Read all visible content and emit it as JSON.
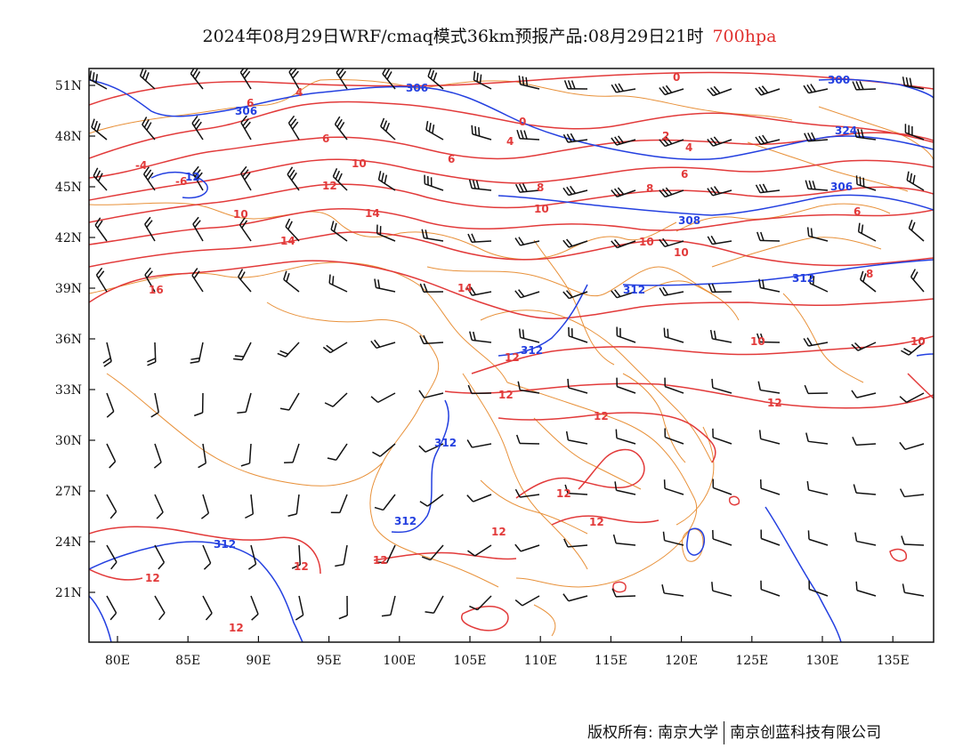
{
  "title": {
    "main": "2024年08月29日WRF/cmaq模式36km预报产品:08月29日21时",
    "level": "700hpa"
  },
  "axes": {
    "lon_labels": [
      "80E",
      "85E",
      "90E",
      "95E",
      "100E",
      "105E",
      "110E",
      "115E",
      "120E",
      "125E",
      "130E",
      "135E"
    ],
    "lat_labels": [
      "51N",
      "48N",
      "45N",
      "42N",
      "39N",
      "36N",
      "33N",
      "30N",
      "27N",
      "24N",
      "21N"
    ]
  },
  "colors": {
    "temperature": "#e23a3a",
    "geopotential": "#2440e0",
    "borders": "#e8913a",
    "wind": "#111111"
  },
  "layers": {
    "temperature_contour_labels": [
      "0",
      "2",
      "4",
      "4",
      "6",
      "6",
      "6",
      "8",
      "8",
      "8",
      "10",
      "10",
      "10",
      "10",
      "10",
      "10",
      "12",
      "12",
      "12",
      "12",
      "12",
      "12",
      "12",
      "12",
      "12",
      "14",
      "14",
      "14",
      "16",
      "-6",
      "-4"
    ],
    "geopotential_contour_labels": [
      "300",
      "306",
      "306",
      "306",
      "308",
      "312",
      "312",
      "312",
      "312",
      "312",
      "312",
      "324"
    ]
  },
  "footer": {
    "copyright": "版权所有: 南京大学",
    "company": "南京创蓝科技有限公司"
  }
}
